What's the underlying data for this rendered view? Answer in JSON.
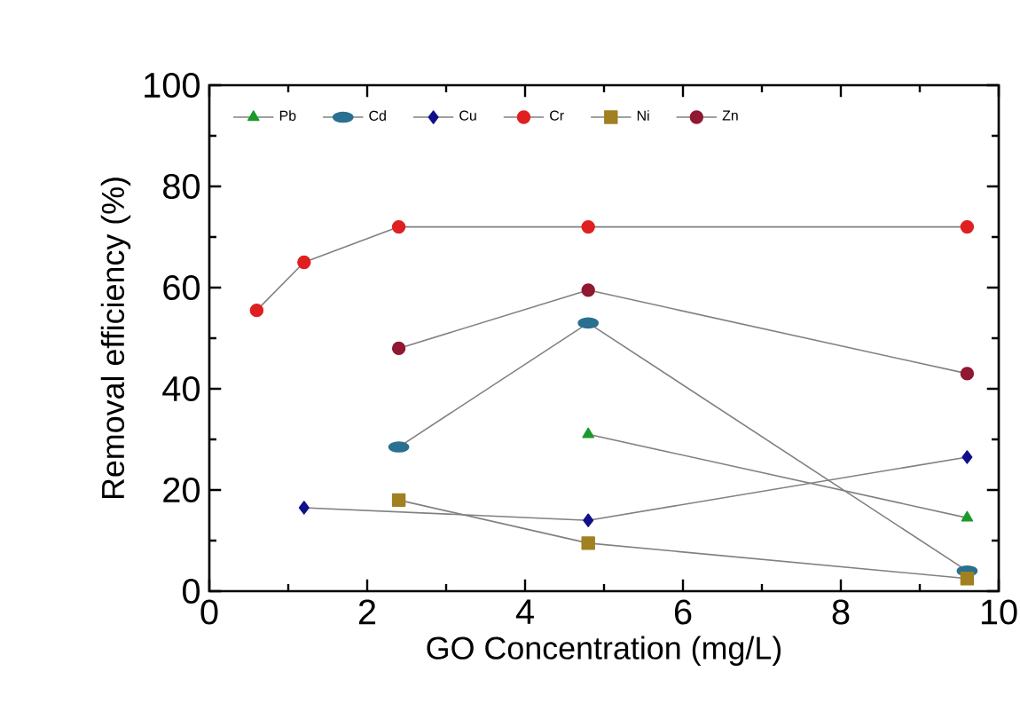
{
  "chart_data": {
    "type": "line",
    "xlabel": "GO Concentration (mg/L)",
    "ylabel": "Removal efficiency (%)",
    "xlim": [
      0,
      10
    ],
    "ylim": [
      0,
      100
    ],
    "xticks": [
      0,
      2,
      4,
      6,
      8,
      10
    ],
    "yticks": [
      0,
      20,
      40,
      60,
      80,
      100
    ],
    "legend": "top left",
    "grid": false,
    "series": [
      {
        "name": "Pb",
        "color": "#1a9a2a",
        "marker": "triangle",
        "x": [
          4.8,
          9.6
        ],
        "values": [
          31,
          14.5
        ]
      },
      {
        "name": "Cd",
        "color": "#2a7090",
        "marker": "circle",
        "x": [
          2.4,
          4.8,
          9.6
        ],
        "values": [
          28.5,
          53,
          4
        ]
      },
      {
        "name": "Cu",
        "color": "#10108a",
        "marker": "diamond",
        "x": [
          1.2,
          4.8,
          9.6
        ],
        "values": [
          16.5,
          14,
          26.5
        ]
      },
      {
        "name": "Cr",
        "color": "#e02020",
        "marker": "circle",
        "x": [
          0.6,
          1.2,
          2.4,
          4.8,
          9.6
        ],
        "values": [
          55.5,
          65,
          72,
          72,
          72
        ]
      },
      {
        "name": "Ni",
        "color": "#a08020",
        "marker": "square",
        "x": [
          2.4,
          4.8,
          9.6
        ],
        "values": [
          18,
          9.5,
          2.5
        ]
      },
      {
        "name": "Zn",
        "color": "#901830",
        "marker": "circle",
        "x": [
          2.4,
          4.8,
          9.6
        ],
        "values": [
          48,
          59.5,
          43
        ]
      }
    ]
  }
}
